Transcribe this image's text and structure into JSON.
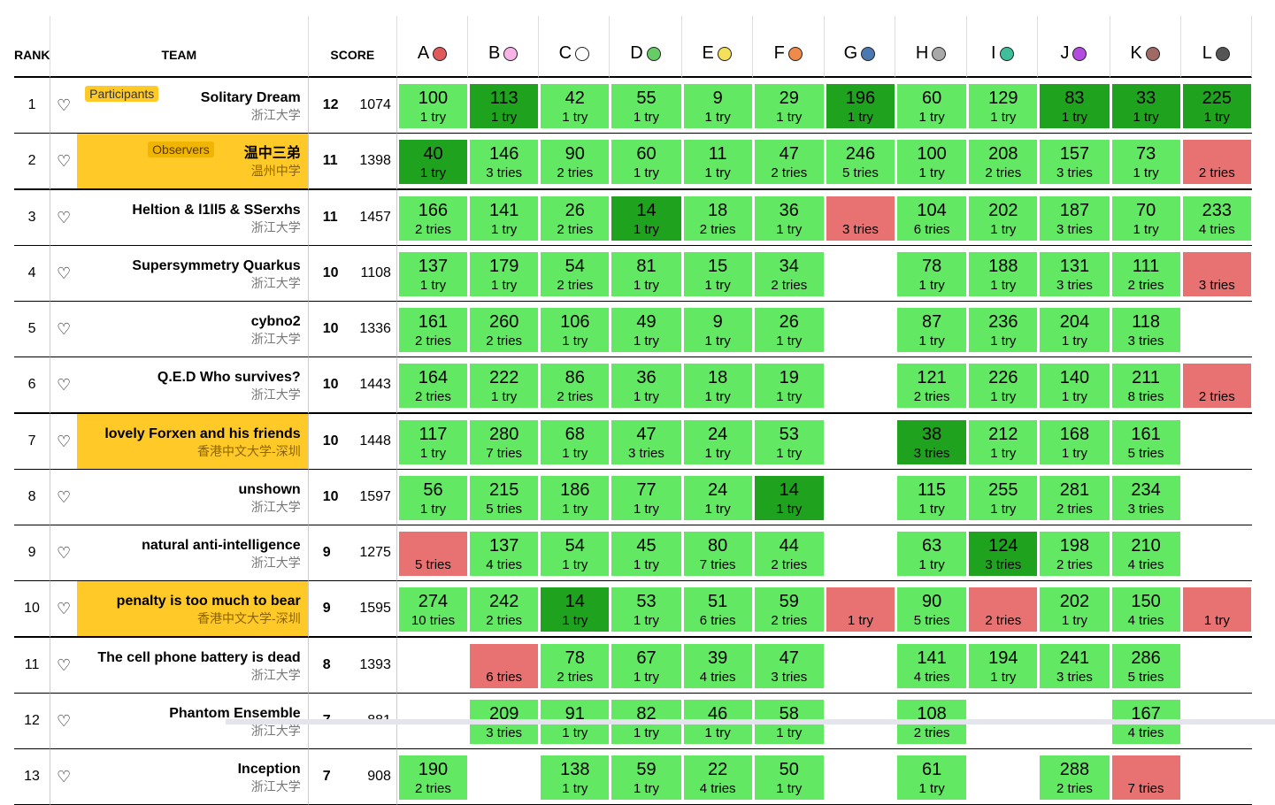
{
  "headers": {
    "rank": "RANK",
    "team": "TEAM",
    "score": "SCORE"
  },
  "problems": [
    {
      "label": "A",
      "color": "#e05a5a"
    },
    {
      "label": "B",
      "color": "#f8b4e6"
    },
    {
      "label": "C",
      "color": "#ffffff"
    },
    {
      "label": "D",
      "color": "#66cc66"
    },
    {
      "label": "E",
      "color": "#f5e05a"
    },
    {
      "label": "F",
      "color": "#f08a4b"
    },
    {
      "label": "G",
      "color": "#4a78b0"
    },
    {
      "label": "H",
      "color": "#a8a8a8"
    },
    {
      "label": "I",
      "color": "#3dbf9b"
    },
    {
      "label": "J",
      "color": "#b24be0"
    },
    {
      "label": "K",
      "color": "#a06a64"
    },
    {
      "label": "L",
      "color": "#555555"
    }
  ],
  "rows": [
    {
      "rank": "1",
      "name": "Solitary Dream",
      "school": "浙江大学",
      "tag": "Participants",
      "highlight": false,
      "separator": false,
      "solved": "12",
      "penalty": "1074",
      "cells": [
        [
          "ac",
          "100",
          "1 try"
        ],
        [
          "fb",
          "113",
          "1 try"
        ],
        [
          "ac",
          "42",
          "1 try"
        ],
        [
          "ac",
          "55",
          "1 try"
        ],
        [
          "ac",
          "9",
          "1 try"
        ],
        [
          "ac",
          "29",
          "1 try"
        ],
        [
          "fb",
          "196",
          "1 try"
        ],
        [
          "ac",
          "60",
          "1 try"
        ],
        [
          "ac",
          "129",
          "1 try"
        ],
        [
          "fb",
          "83",
          "1 try"
        ],
        [
          "fb",
          "33",
          "1 try"
        ],
        [
          "fb",
          "225",
          "1 try"
        ]
      ]
    },
    {
      "rank": "2",
      "name": "温中三弟",
      "school": "温州中学",
      "tag": "Observers",
      "highlight": true,
      "separator": true,
      "solved": "11",
      "penalty": "1398",
      "cells": [
        [
          "fb",
          "40",
          "1 try"
        ],
        [
          "ac",
          "146",
          "3 tries"
        ],
        [
          "ac",
          "90",
          "2 tries"
        ],
        [
          "ac",
          "60",
          "1 try"
        ],
        [
          "ac",
          "11",
          "1 try"
        ],
        [
          "ac",
          "47",
          "2 tries"
        ],
        [
          "ac",
          "246",
          "5 tries"
        ],
        [
          "ac",
          "100",
          "1 try"
        ],
        [
          "ac",
          "208",
          "2 tries"
        ],
        [
          "ac",
          "157",
          "3 tries"
        ],
        [
          "ac",
          "73",
          "1 try"
        ],
        [
          "wa",
          "",
          "2 tries"
        ]
      ]
    },
    {
      "rank": "3",
      "name": "Heltion & l1ll5 & SSerxhs",
      "school": "浙江大学",
      "tag": "",
      "highlight": false,
      "separator": false,
      "solved": "11",
      "penalty": "1457",
      "cells": [
        [
          "ac",
          "166",
          "2 tries"
        ],
        [
          "ac",
          "141",
          "1 try"
        ],
        [
          "ac",
          "26",
          "2 tries"
        ],
        [
          "fb",
          "14",
          "1 try"
        ],
        [
          "ac",
          "18",
          "2 tries"
        ],
        [
          "ac",
          "36",
          "1 try"
        ],
        [
          "wa",
          "",
          "3 tries"
        ],
        [
          "ac",
          "104",
          "6 tries"
        ],
        [
          "ac",
          "202",
          "1 try"
        ],
        [
          "ac",
          "187",
          "3 tries"
        ],
        [
          "ac",
          "70",
          "1 try"
        ],
        [
          "ac",
          "233",
          "4 tries"
        ]
      ]
    },
    {
      "rank": "4",
      "name": "Supersymmetry Quarkus",
      "school": "浙江大学",
      "tag": "",
      "highlight": false,
      "separator": false,
      "solved": "10",
      "penalty": "1108",
      "cells": [
        [
          "ac",
          "137",
          "1 try"
        ],
        [
          "ac",
          "179",
          "1 try"
        ],
        [
          "ac",
          "54",
          "2 tries"
        ],
        [
          "ac",
          "81",
          "1 try"
        ],
        [
          "ac",
          "15",
          "1 try"
        ],
        [
          "ac",
          "34",
          "2 tries"
        ],
        [
          "",
          "",
          ""
        ],
        [
          "ac",
          "78",
          "1 try"
        ],
        [
          "ac",
          "188",
          "1 try"
        ],
        [
          "ac",
          "131",
          "3 tries"
        ],
        [
          "ac",
          "111",
          "2 tries"
        ],
        [
          "wa",
          "",
          "3 tries"
        ]
      ]
    },
    {
      "rank": "5",
      "name": "cybno2",
      "school": "浙江大学",
      "tag": "",
      "highlight": false,
      "separator": false,
      "solved": "10",
      "penalty": "1336",
      "cells": [
        [
          "ac",
          "161",
          "2 tries"
        ],
        [
          "ac",
          "260",
          "2 tries"
        ],
        [
          "ac",
          "106",
          "1 try"
        ],
        [
          "ac",
          "49",
          "1 try"
        ],
        [
          "ac",
          "9",
          "1 try"
        ],
        [
          "ac",
          "26",
          "1 try"
        ],
        [
          "",
          "",
          ""
        ],
        [
          "ac",
          "87",
          "1 try"
        ],
        [
          "ac",
          "236",
          "1 try"
        ],
        [
          "ac",
          "204",
          "1 try"
        ],
        [
          "ac",
          "118",
          "3 tries"
        ],
        [
          "",
          "",
          ""
        ]
      ]
    },
    {
      "rank": "6",
      "name": "Q.E.D Who survives?",
      "school": "浙江大学",
      "tag": "",
      "highlight": false,
      "separator": true,
      "solved": "10",
      "penalty": "1443",
      "cells": [
        [
          "ac",
          "164",
          "2 tries"
        ],
        [
          "ac",
          "222",
          "1 try"
        ],
        [
          "ac",
          "86",
          "2 tries"
        ],
        [
          "ac",
          "36",
          "1 try"
        ],
        [
          "ac",
          "18",
          "1 try"
        ],
        [
          "ac",
          "19",
          "1 try"
        ],
        [
          "",
          "",
          ""
        ],
        [
          "ac",
          "121",
          "2 tries"
        ],
        [
          "ac",
          "226",
          "1 try"
        ],
        [
          "ac",
          "140",
          "1 try"
        ],
        [
          "ac",
          "211",
          "8 tries"
        ],
        [
          "wa",
          "",
          "2 tries"
        ]
      ]
    },
    {
      "rank": "7",
      "name": "lovely Forxen and his friends",
      "school": "香港中文大学-深圳",
      "tag": "",
      "highlight": true,
      "separator": false,
      "solved": "10",
      "penalty": "1448",
      "cells": [
        [
          "ac",
          "117",
          "1 try"
        ],
        [
          "ac",
          "280",
          "7 tries"
        ],
        [
          "ac",
          "68",
          "1 try"
        ],
        [
          "ac",
          "47",
          "3 tries"
        ],
        [
          "ac",
          "24",
          "1 try"
        ],
        [
          "ac",
          "53",
          "1 try"
        ],
        [
          "",
          "",
          ""
        ],
        [
          "fb",
          "38",
          "3 tries"
        ],
        [
          "ac",
          "212",
          "1 try"
        ],
        [
          "ac",
          "168",
          "1 try"
        ],
        [
          "ac",
          "161",
          "5 tries"
        ],
        [
          "",
          "",
          ""
        ]
      ]
    },
    {
      "rank": "8",
      "name": "unshown",
      "school": "浙江大学",
      "tag": "",
      "highlight": false,
      "separator": false,
      "solved": "10",
      "penalty": "1597",
      "cells": [
        [
          "ac",
          "56",
          "1 try"
        ],
        [
          "ac",
          "215",
          "5 tries"
        ],
        [
          "ac",
          "186",
          "1 try"
        ],
        [
          "ac",
          "77",
          "1 try"
        ],
        [
          "ac",
          "24",
          "1 try"
        ],
        [
          "fb",
          "14",
          "1 try"
        ],
        [
          "",
          "",
          ""
        ],
        [
          "ac",
          "115",
          "1 try"
        ],
        [
          "ac",
          "255",
          "1 try"
        ],
        [
          "ac",
          "281",
          "2 tries"
        ],
        [
          "ac",
          "234",
          "3 tries"
        ],
        [
          "",
          "",
          ""
        ]
      ]
    },
    {
      "rank": "9",
      "name": "natural anti-intelligence",
      "school": "浙江大学",
      "tag": "",
      "highlight": false,
      "separator": false,
      "solved": "9",
      "penalty": "1275",
      "cells": [
        [
          "wa",
          "",
          "5 tries"
        ],
        [
          "ac",
          "137",
          "4 tries"
        ],
        [
          "ac",
          "54",
          "1 try"
        ],
        [
          "ac",
          "45",
          "1 try"
        ],
        [
          "ac",
          "80",
          "7 tries"
        ],
        [
          "ac",
          "44",
          "2 tries"
        ],
        [
          "",
          "",
          ""
        ],
        [
          "ac",
          "63",
          "1 try"
        ],
        [
          "fb",
          "124",
          "3 tries"
        ],
        [
          "ac",
          "198",
          "2 tries"
        ],
        [
          "ac",
          "210",
          "4 tries"
        ],
        [
          "",
          "",
          ""
        ]
      ]
    },
    {
      "rank": "10",
      "name": "penalty is too much to bear",
      "school": "香港中文大学-深圳",
      "tag": "",
      "highlight": true,
      "separator": true,
      "solved": "9",
      "penalty": "1595",
      "cells": [
        [
          "ac",
          "274",
          "10 tries"
        ],
        [
          "ac",
          "242",
          "2 tries"
        ],
        [
          "fb",
          "14",
          "1 try"
        ],
        [
          "ac",
          "53",
          "1 try"
        ],
        [
          "ac",
          "51",
          "6 tries"
        ],
        [
          "ac",
          "59",
          "2 tries"
        ],
        [
          "wa",
          "",
          "1 try"
        ],
        [
          "ac",
          "90",
          "5 tries"
        ],
        [
          "wa",
          "",
          "2 tries"
        ],
        [
          "ac",
          "202",
          "1 try"
        ],
        [
          "ac",
          "150",
          "4 tries"
        ],
        [
          "wa",
          "",
          "1 try"
        ]
      ]
    },
    {
      "rank": "11",
      "name": "The cell phone battery is dead",
      "school": "浙江大学",
      "tag": "",
      "highlight": false,
      "separator": false,
      "solved": "8",
      "penalty": "1393",
      "cells": [
        [
          "",
          "",
          ""
        ],
        [
          "wa",
          "",
          "6 tries"
        ],
        [
          "ac",
          "78",
          "2 tries"
        ],
        [
          "ac",
          "67",
          "1 try"
        ],
        [
          "ac",
          "39",
          "4 tries"
        ],
        [
          "ac",
          "47",
          "3 tries"
        ],
        [
          "",
          "",
          ""
        ],
        [
          "ac",
          "141",
          "4 tries"
        ],
        [
          "ac",
          "194",
          "1 try"
        ],
        [
          "ac",
          "241",
          "3 tries"
        ],
        [
          "ac",
          "286",
          "5 tries"
        ],
        [
          "",
          "",
          ""
        ]
      ]
    },
    {
      "rank": "12",
      "name": "Phantom Ensemble",
      "school": "浙江大学",
      "tag": "",
      "highlight": false,
      "separator": false,
      "solved": "7",
      "penalty": "881",
      "cells": [
        [
          "",
          "",
          ""
        ],
        [
          "ac",
          "209",
          "3 tries"
        ],
        [
          "ac",
          "91",
          "1 try"
        ],
        [
          "ac",
          "82",
          "1 try"
        ],
        [
          "ac",
          "46",
          "1 try"
        ],
        [
          "ac",
          "58",
          "1 try"
        ],
        [
          "",
          "",
          ""
        ],
        [
          "ac",
          "108",
          "2 tries"
        ],
        [
          "",
          "",
          ""
        ],
        [
          "",
          "",
          ""
        ],
        [
          "ac",
          "167",
          "4 tries"
        ],
        [
          "",
          "",
          ""
        ]
      ]
    },
    {
      "rank": "13",
      "name": "Inception",
      "school": "浙江大学",
      "tag": "",
      "highlight": false,
      "separator": false,
      "solved": "7",
      "penalty": "908",
      "cells": [
        [
          "ac",
          "190",
          "2 tries"
        ],
        [
          "",
          "",
          ""
        ],
        [
          "ac",
          "138",
          "1 try"
        ],
        [
          "ac",
          "59",
          "1 try"
        ],
        [
          "ac",
          "22",
          "4 tries"
        ],
        [
          "ac",
          "50",
          "1 try"
        ],
        [
          "",
          "",
          ""
        ],
        [
          "ac",
          "61",
          "1 try"
        ],
        [
          "",
          "",
          ""
        ],
        [
          "ac",
          "288",
          "2 tries"
        ],
        [
          "wa",
          "",
          "7 tries"
        ],
        [
          "",
          "",
          ""
        ]
      ]
    }
  ]
}
